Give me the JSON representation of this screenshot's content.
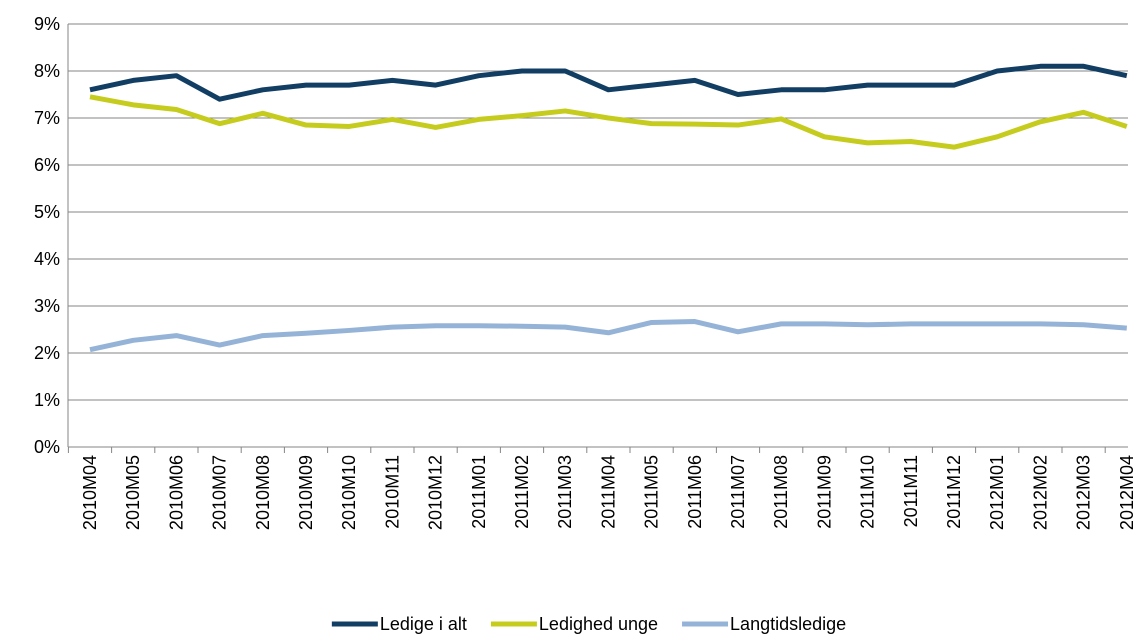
{
  "chart_data": {
    "type": "line",
    "categories": [
      "2010M04",
      "2010M05",
      "2010M06",
      "2010M07",
      "2010M08",
      "2010M09",
      "2010M10",
      "2010M11",
      "2010M12",
      "2011M01",
      "2011M02",
      "2011M03",
      "2011M04",
      "2011M05",
      "2011M06",
      "2011M07",
      "2011M08",
      "2011M09",
      "2011M10",
      "2011M11",
      "2011M12",
      "2012M01",
      "2012M02",
      "2012M03",
      "2012M04"
    ],
    "series": [
      {
        "name": "Ledige i alt",
        "color": "#123e64",
        "values": [
          7.6,
          7.8,
          7.9,
          7.4,
          7.6,
          7.7,
          7.7,
          7.8,
          7.7,
          7.9,
          8.0,
          8.0,
          7.6,
          7.7,
          7.8,
          7.5,
          7.6,
          7.6,
          7.7,
          7.7,
          7.7,
          8.0,
          8.1,
          8.1,
          7.9
        ]
      },
      {
        "name": "Ledighed unge",
        "color": "#c5cc1e",
        "values": [
          7.45,
          7.28,
          7.18,
          6.88,
          7.1,
          6.85,
          6.82,
          6.97,
          6.8,
          6.97,
          7.05,
          7.15,
          7.0,
          6.88,
          6.87,
          6.85,
          6.98,
          6.6,
          6.47,
          6.5,
          6.38,
          6.6,
          6.92,
          7.12,
          6.82
        ]
      },
      {
        "name": "Langtidsledige",
        "color": "#95b3d7",
        "values": [
          2.07,
          2.27,
          2.37,
          2.17,
          2.37,
          2.42,
          2.48,
          2.55,
          2.58,
          2.58,
          2.57,
          2.55,
          2.43,
          2.65,
          2.67,
          2.45,
          2.62,
          2.62,
          2.6,
          2.62,
          2.62,
          2.62,
          2.62,
          2.6,
          2.53
        ]
      }
    ],
    "ylim": [
      0,
      9
    ],
    "yticks": [
      {
        "value": 0,
        "label": "0%"
      },
      {
        "value": 1,
        "label": "1%"
      },
      {
        "value": 2,
        "label": "2%"
      },
      {
        "value": 3,
        "label": "3%"
      },
      {
        "value": 4,
        "label": "4%"
      },
      {
        "value": 5,
        "label": "5%"
      },
      {
        "value": 6,
        "label": "6%"
      },
      {
        "value": 7,
        "label": "7%"
      },
      {
        "value": 8,
        "label": "8%"
      },
      {
        "value": 9,
        "label": "9%"
      }
    ],
    "grid": true,
    "legend": "bottom"
  }
}
